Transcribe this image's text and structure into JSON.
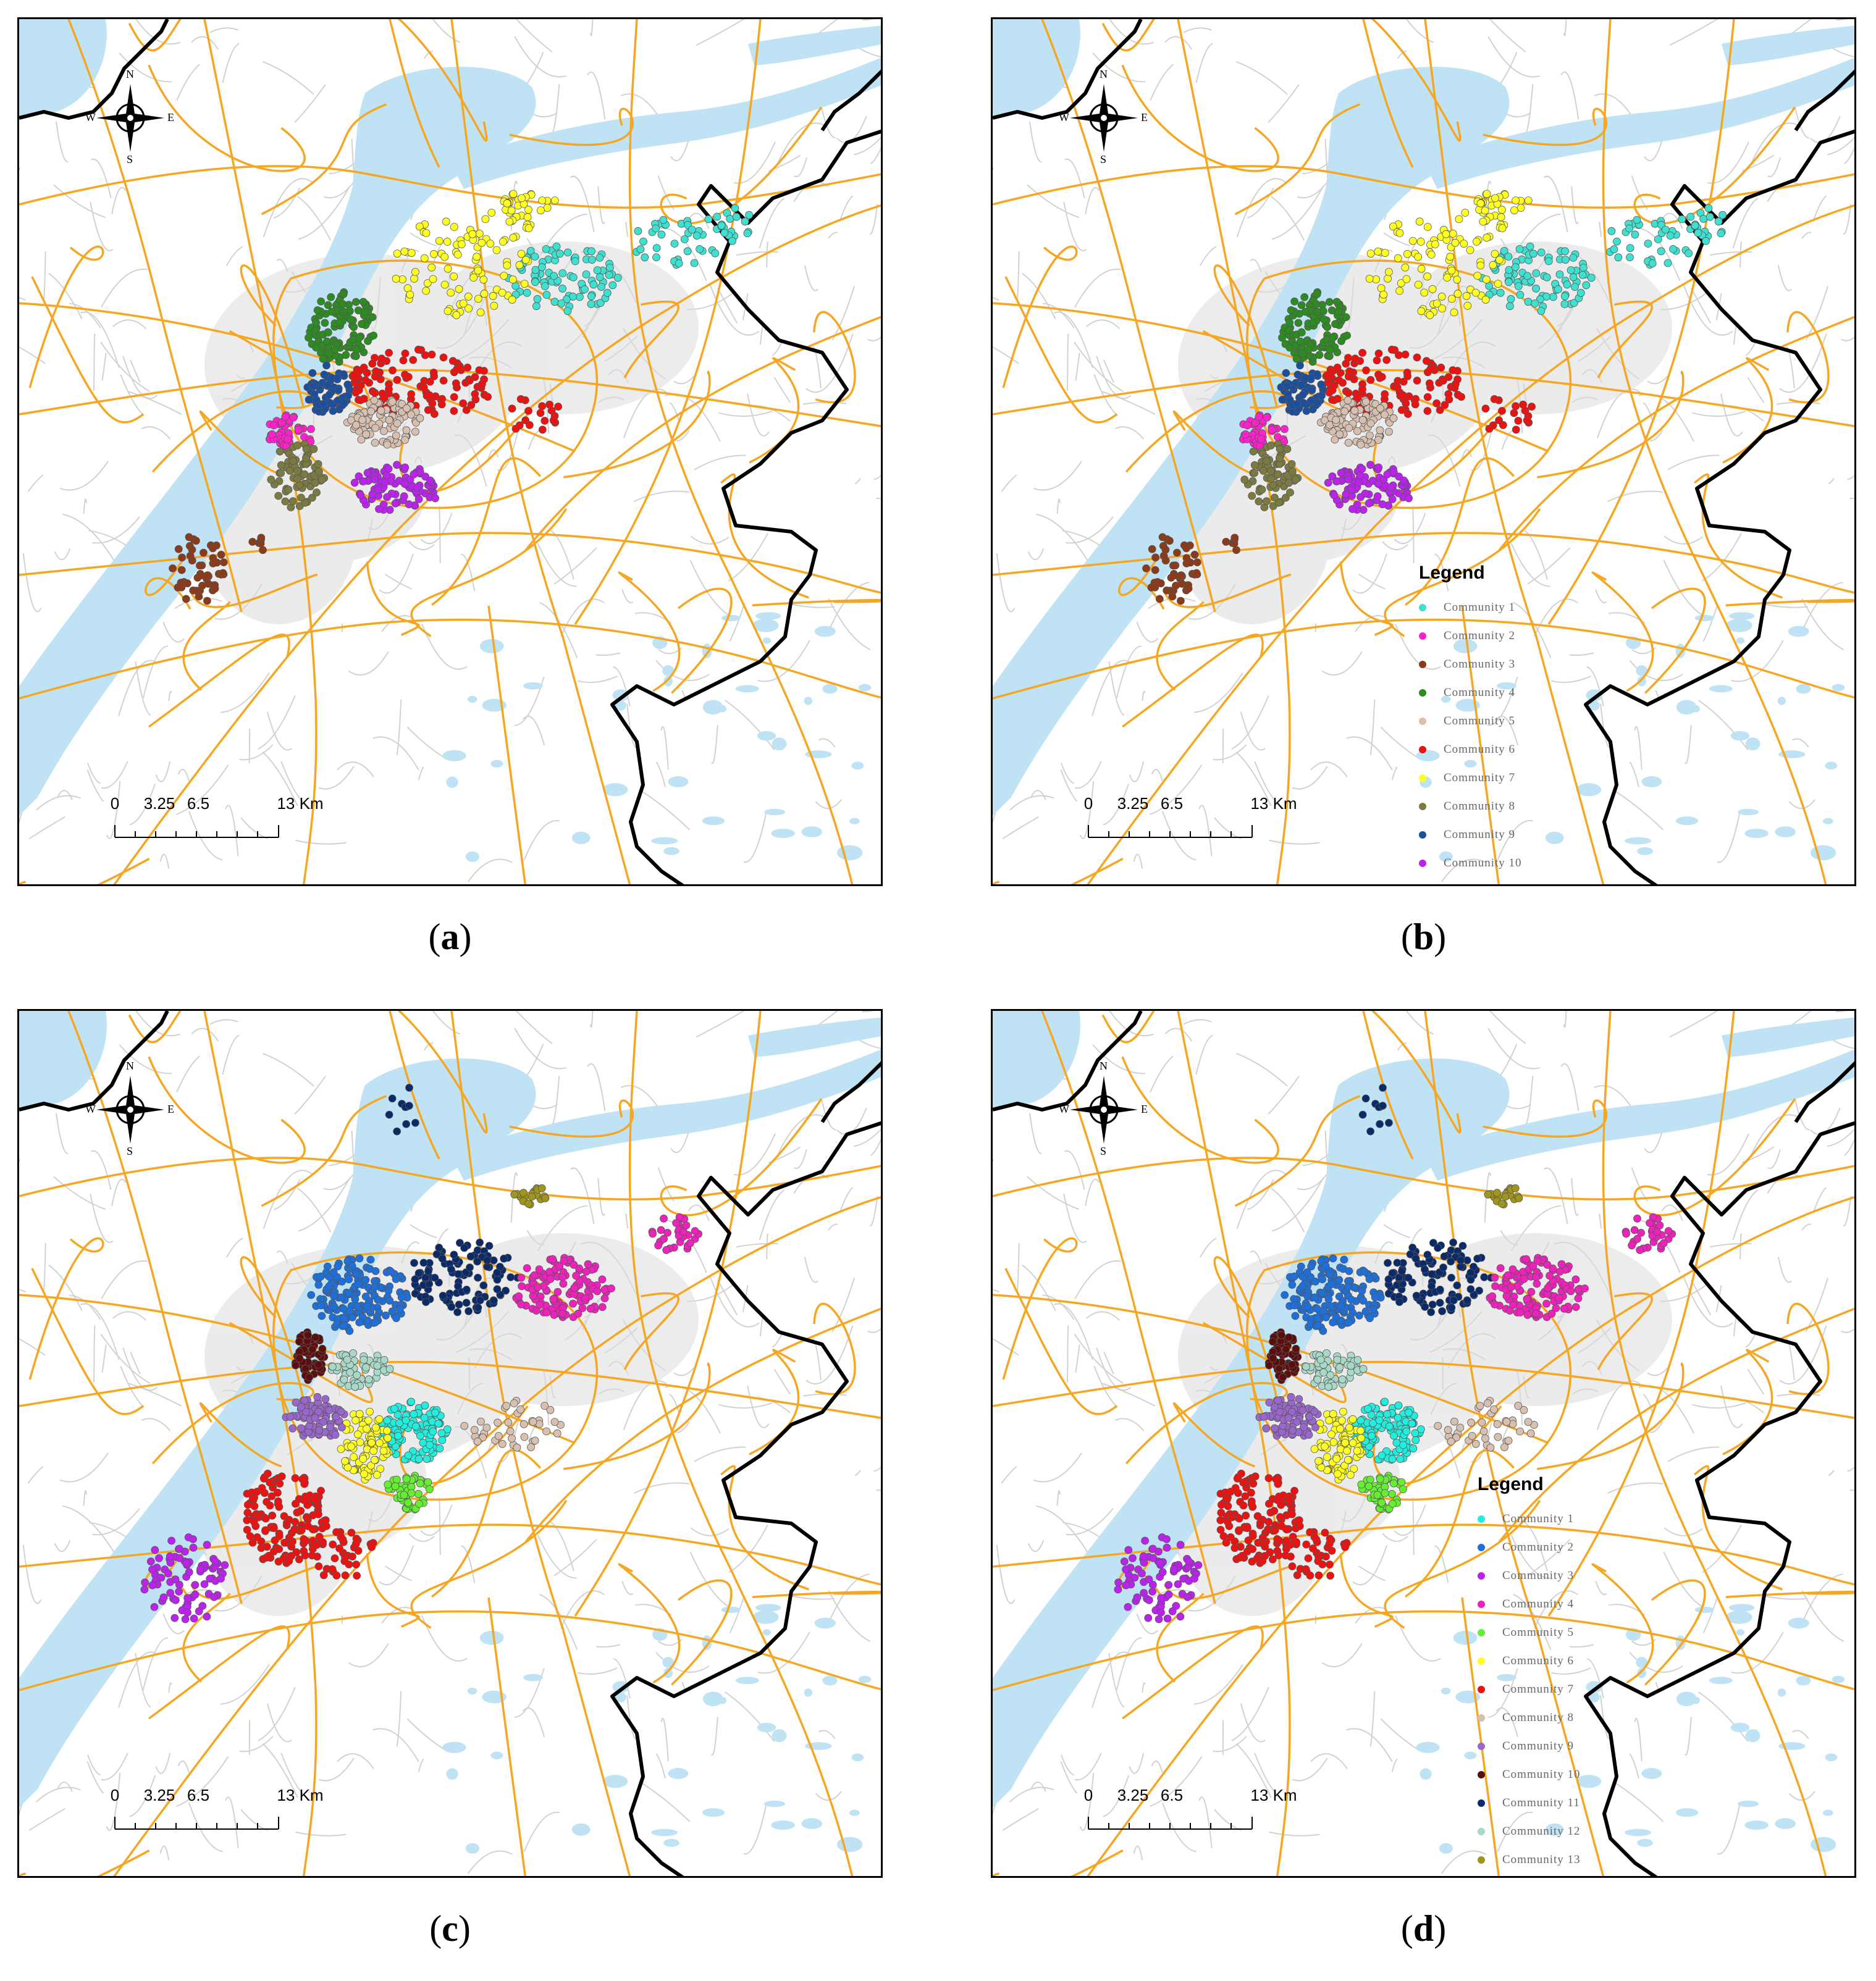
{
  "compass": {
    "north": "N",
    "south": "S",
    "east": "E",
    "west": "W"
  },
  "scale": {
    "ticks": [
      "0",
      "3.25",
      "6.5",
      "13 Km"
    ]
  },
  "colors": {
    "road_major": "#f5a623",
    "road_minor": "#d2d2d2",
    "water": "#bfe3f4",
    "boundary": "#000000"
  },
  "panels": [
    {
      "id": "a",
      "caption": "a",
      "legend": null,
      "communities": [
        {
          "name": "Community 1",
          "color": "#40e0d0"
        },
        {
          "name": "Community 2",
          "color": "#ff22cc"
        },
        {
          "name": "Community 3",
          "color": "#8b3a1a"
        },
        {
          "name": "Community 4",
          "color": "#2e8b22"
        },
        {
          "name": "Community 5",
          "color": "#d8c0b0"
        },
        {
          "name": "Community 6",
          "color": "#ee1111"
        },
        {
          "name": "Community 7",
          "color": "#ffff22"
        },
        {
          "name": "Community 8",
          "color": "#7a7a42"
        },
        {
          "name": "Community 9",
          "color": "#1a4fa0"
        },
        {
          "name": "Community 10",
          "color": "#bb22ee"
        }
      ]
    },
    {
      "id": "b",
      "caption": "b",
      "legend": {
        "title": "Legend",
        "items": [
          {
            "label": "Community 1",
            "color": "#40e0d0"
          },
          {
            "label": "Community 2",
            "color": "#ff22cc"
          },
          {
            "label": "Community 3",
            "color": "#8b3a1a"
          },
          {
            "label": "Community 4",
            "color": "#2e8b22"
          },
          {
            "label": "Community 5",
            "color": "#d8c0b0"
          },
          {
            "label": "Community 6",
            "color": "#ee1111"
          },
          {
            "label": "Community 7",
            "color": "#ffff22"
          },
          {
            "label": "Community 8",
            "color": "#7a7a42"
          },
          {
            "label": "Community 9",
            "color": "#1a4fa0"
          },
          {
            "label": "Community 10",
            "color": "#bb22ee"
          }
        ]
      }
    },
    {
      "id": "c",
      "caption": "c",
      "legend": null,
      "communities": [
        {
          "name": "Community 1",
          "color": "#22eedd"
        },
        {
          "name": "Community 2",
          "color": "#1e6fd9"
        },
        {
          "name": "Community 3",
          "color": "#bb22ee"
        },
        {
          "name": "Community 4",
          "color": "#ee22bb"
        },
        {
          "name": "Community 5",
          "color": "#66ee33"
        },
        {
          "name": "Community 6",
          "color": "#ffff22"
        },
        {
          "name": "Community 7",
          "color": "#ee1111"
        },
        {
          "name": "Community 8",
          "color": "#d8c0b0"
        },
        {
          "name": "Community 9",
          "color": "#9966cc"
        },
        {
          "name": "Community 10",
          "color": "#5a0e0e"
        },
        {
          "name": "Community 11",
          "color": "#0a2a6a"
        },
        {
          "name": "Community 12",
          "color": "#a8d8c8"
        },
        {
          "name": "Community 13",
          "color": "#a0961e"
        }
      ]
    },
    {
      "id": "d",
      "caption": "d",
      "legend": {
        "title": "Legend",
        "items": [
          {
            "label": "Community 1",
            "color": "#22eedd"
          },
          {
            "label": "Community 2",
            "color": "#1e6fd9"
          },
          {
            "label": "Community 3",
            "color": "#bb22ee"
          },
          {
            "label": "Community 4",
            "color": "#ee22bb"
          },
          {
            "label": "Community 5",
            "color": "#66ee33"
          },
          {
            "label": "Community 6",
            "color": "#ffff22"
          },
          {
            "label": "Community 7",
            "color": "#ee1111"
          },
          {
            "label": "Community 8",
            "color": "#d8c0b0"
          },
          {
            "label": "Community 9",
            "color": "#9966cc"
          },
          {
            "label": "Community 10",
            "color": "#5a0e0e"
          },
          {
            "label": "Community 11",
            "color": "#0a2a6a"
          },
          {
            "label": "Community 12",
            "color": "#a8d8c8"
          },
          {
            "label": "Community 13",
            "color": "#a0961e"
          }
        ]
      }
    }
  ]
}
